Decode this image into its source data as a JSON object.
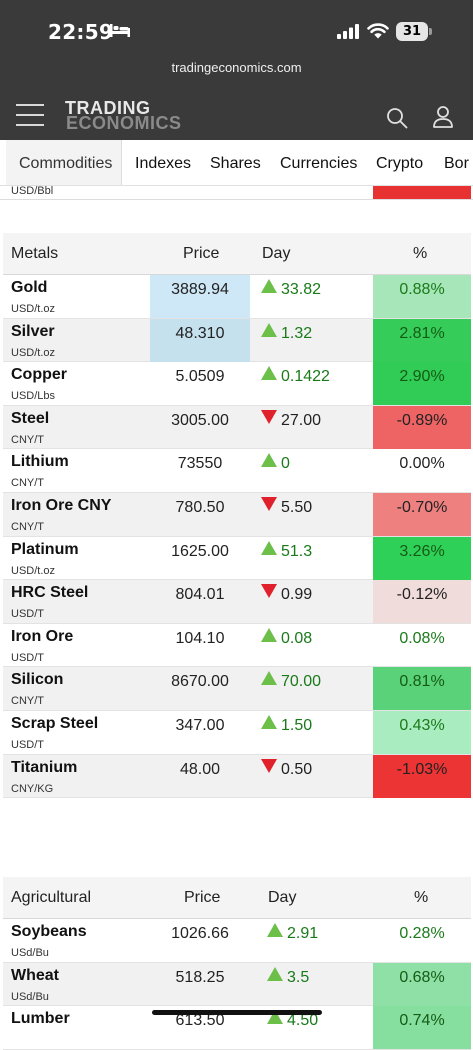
{
  "status": {
    "time": "22:59",
    "battery": "31",
    "url": "tradingeconomics.com"
  },
  "header": {
    "logo_line1": "TRADING",
    "logo_line2": "ECONOMICS"
  },
  "tabs": [
    "Commodities",
    "Indexes",
    "Shares",
    "Currencies",
    "Crypto",
    "Bor"
  ],
  "partial_row": {
    "unit": "USD/Bbl",
    "pct_color": "#e83232"
  },
  "metals": {
    "headers": {
      "name": "Metals",
      "price": "Price",
      "day": "Day",
      "pct": "%"
    },
    "rows": [
      {
        "name": "Gold",
        "unit": "USD/t.oz",
        "price": "3889.94",
        "day": "33.82",
        "dir": "up",
        "pct": "0.88%",
        "price_bg": "#cfe8f7",
        "pct_bg": "#a6e6b8",
        "pct_color": "#1a7a1a"
      },
      {
        "name": "Silver",
        "unit": "USD/t.oz",
        "price": "48.310",
        "day": "1.32",
        "dir": "up",
        "pct": "2.81%",
        "price_bg": "#c6e1ee",
        "pct_bg": "#36cc5a",
        "pct_color": "#145c14"
      },
      {
        "name": "Copper",
        "unit": "USD/Lbs",
        "price": "5.0509",
        "day": "0.1422",
        "dir": "up",
        "pct": "2.90%",
        "price_bg": "",
        "pct_bg": "#30cc55",
        "pct_color": "#145c14"
      },
      {
        "name": "Steel",
        "unit": "CNY/T",
        "price": "3005.00",
        "day": "27.00",
        "dir": "down",
        "pct": "-0.89%",
        "price_bg": "",
        "pct_bg": "#ee6464",
        "pct_color": "#222222"
      },
      {
        "name": "Lithium",
        "unit": "CNY/T",
        "price": "73550",
        "day": "0",
        "dir": "up",
        "pct": "0.00%",
        "price_bg": "",
        "pct_bg": "",
        "pct_color": "#222222"
      },
      {
        "name": "Iron Ore CNY",
        "unit": "CNY/T",
        "price": "780.50",
        "day": "5.50",
        "dir": "down",
        "pct": "-0.70%",
        "price_bg": "",
        "pct_bg": "#ee8080",
        "pct_color": "#222222"
      },
      {
        "name": "Platinum",
        "unit": "USD/t.oz",
        "price": "1625.00",
        "day": "51.3",
        "dir": "up",
        "pct": "3.26%",
        "price_bg": "",
        "pct_bg": "#2fd058",
        "pct_color": "#145c14"
      },
      {
        "name": "HRC Steel",
        "unit": "USD/T",
        "price": "804.01",
        "day": "0.99",
        "dir": "down",
        "pct": "-0.12%",
        "price_bg": "",
        "pct_bg": "#f1dcdc",
        "pct_color": "#222222"
      },
      {
        "name": "Iron Ore",
        "unit": "USD/T",
        "price": "104.10",
        "day": "0.08",
        "dir": "up",
        "pct": "0.08%",
        "price_bg": "",
        "pct_bg": "",
        "pct_color": "#1a7a1a"
      },
      {
        "name": "Silicon",
        "unit": "CNY/T",
        "price": "8670.00",
        "day": "70.00",
        "dir": "up",
        "pct": "0.81%",
        "price_bg": "",
        "pct_bg": "#5ad27a",
        "pct_color": "#145c14"
      },
      {
        "name": "Scrap Steel",
        "unit": "USD/T",
        "price": "347.00",
        "day": "1.50",
        "dir": "up",
        "pct": "0.43%",
        "price_bg": "",
        "pct_bg": "#a9ecbf",
        "pct_color": "#1a7a1a"
      },
      {
        "name": "Titanium",
        "unit": "CNY/KG",
        "price": "48.00",
        "day": "0.50",
        "dir": "down",
        "pct": "-1.03%",
        "price_bg": "",
        "pct_bg": "#ec3434",
        "pct_color": "#222222"
      }
    ]
  },
  "agricultural": {
    "headers": {
      "name": "Agricultural",
      "price": "Price",
      "day": "Day",
      "pct": "%"
    },
    "rows": [
      {
        "name": "Soybeans",
        "unit": "USd/Bu",
        "price": "1026.66",
        "day": "2.91",
        "dir": "up",
        "pct": "0.28%",
        "price_bg": "",
        "pct_bg": "",
        "pct_color": "#1a7a1a"
      },
      {
        "name": "Wheat",
        "unit": "USd/Bu",
        "price": "518.25",
        "day": "3.5",
        "dir": "up",
        "pct": "0.68%",
        "price_bg": "",
        "pct_bg": "#8fe0a6",
        "pct_color": "#145c14"
      },
      {
        "name": "Lumber",
        "unit": "",
        "price": "613.50",
        "day": "4.50",
        "dir": "up",
        "pct": "0.74%",
        "price_bg": "",
        "pct_bg": "#86de9f",
        "pct_color": "#145c14"
      }
    ]
  }
}
